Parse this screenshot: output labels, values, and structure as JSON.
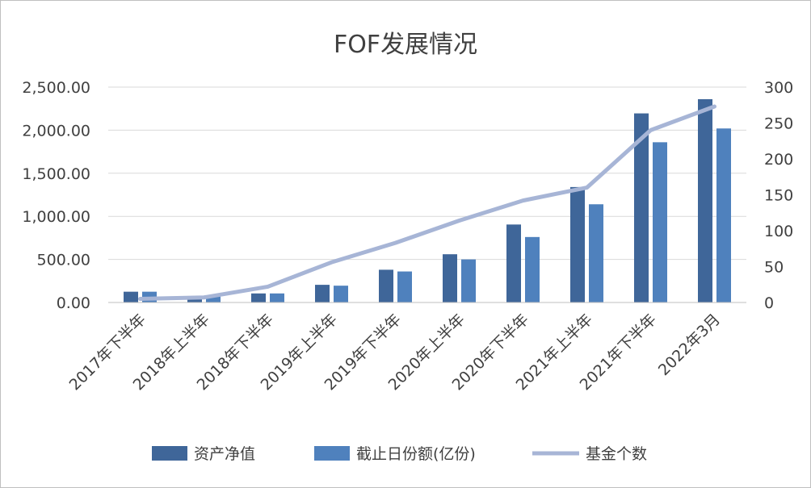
{
  "chart_data": {
    "type": "bar",
    "title": "FOF发展情况",
    "categories": [
      "2017年下半年",
      "2018年上半年",
      "2018年下半年",
      "2019年上半年",
      "2019年下半年",
      "2020年上半年",
      "2020年下半年",
      "2021年上半年",
      "2021年下半年",
      "2022年3月"
    ],
    "series": [
      {
        "name": "资产净值",
        "type": "bar",
        "axis": "left",
        "color": "#3F6699",
        "values": [
          125,
          70,
          105,
          205,
          380,
          560,
          905,
          1340,
          2195,
          2360
        ]
      },
      {
        "name": "截止日份额(亿份)",
        "type": "bar",
        "axis": "left",
        "color": "#4F81BD",
        "values": [
          125,
          70,
          105,
          195,
          360,
          500,
          760,
          1140,
          1860,
          2020
        ]
      },
      {
        "name": "基金个数",
        "type": "line",
        "axis": "right",
        "color": "#A7B5D6",
        "values": [
          5,
          7,
          22,
          56,
          83,
          114,
          142,
          160,
          240,
          273
        ]
      }
    ],
    "y_left": {
      "min": 0,
      "max": 2500,
      "step": 500,
      "tick_labels": [
        "0.00",
        "500.00",
        "1,000.00",
        "1,500.00",
        "2,000.00",
        "2,500.00"
      ]
    },
    "y_right": {
      "min": 0,
      "max": 300,
      "step": 50,
      "tick_labels": [
        "0",
        "50",
        "100",
        "150",
        "200",
        "250",
        "300"
      ]
    },
    "grid": true,
    "legend_position": "bottom"
  }
}
